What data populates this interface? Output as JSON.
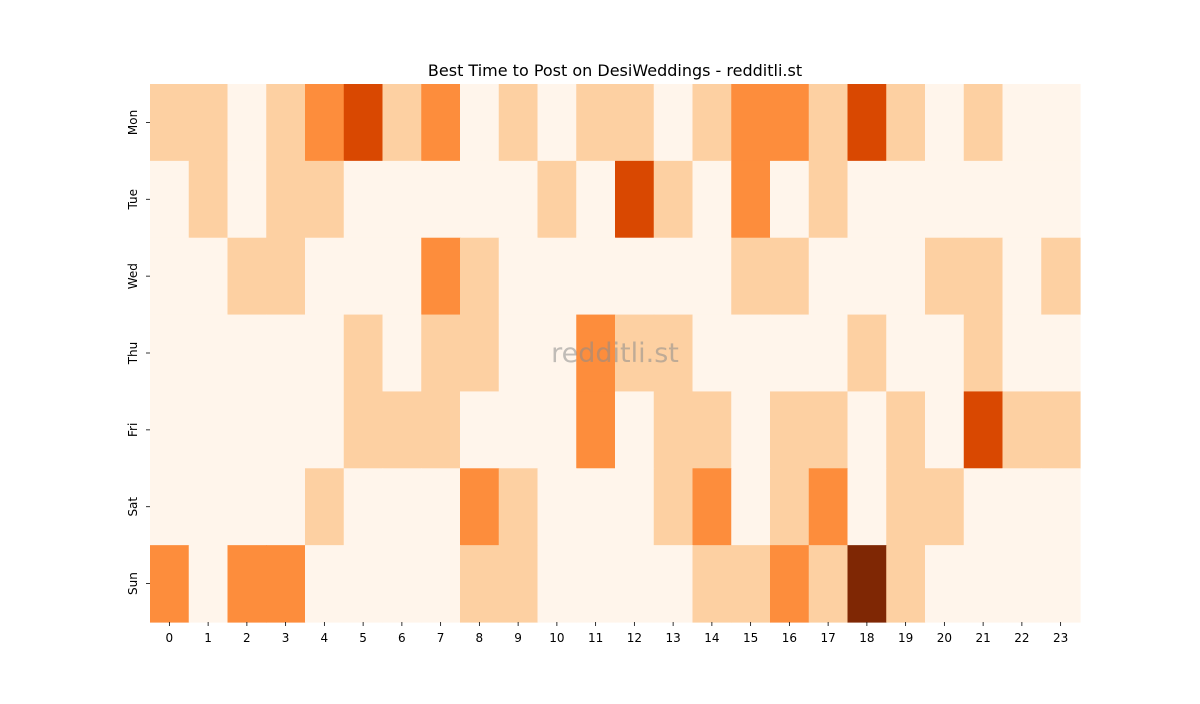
{
  "chart_data": {
    "type": "heatmap",
    "title": "Best Time to Post on DesiWeddings - redditli.st",
    "xlabel": "",
    "ylabel": "",
    "x_categories": [
      "0",
      "1",
      "2",
      "3",
      "4",
      "5",
      "6",
      "7",
      "8",
      "9",
      "10",
      "11",
      "12",
      "13",
      "14",
      "15",
      "16",
      "17",
      "18",
      "19",
      "20",
      "21",
      "22",
      "23"
    ],
    "y_categories": [
      "Mon",
      "Tue",
      "Wed",
      "Thu",
      "Fri",
      "Sat",
      "Sun"
    ],
    "values": [
      [
        1,
        1,
        0,
        1,
        2,
        3,
        1,
        2,
        0,
        1,
        0,
        1,
        1,
        0,
        1,
        2,
        2,
        1,
        3,
        1,
        0,
        1,
        0,
        0
      ],
      [
        0,
        1,
        0,
        1,
        1,
        0,
        0,
        0,
        0,
        0,
        1,
        0,
        3,
        1,
        0,
        2,
        0,
        1,
        0,
        0,
        0,
        0,
        0,
        0
      ],
      [
        0,
        0,
        1,
        1,
        0,
        0,
        0,
        2,
        1,
        0,
        0,
        0,
        0,
        0,
        0,
        1,
        1,
        0,
        0,
        0,
        1,
        1,
        0,
        1
      ],
      [
        0,
        0,
        0,
        0,
        0,
        1,
        0,
        1,
        1,
        0,
        0,
        2,
        1,
        1,
        0,
        0,
        0,
        0,
        1,
        0,
        0,
        1,
        0,
        0
      ],
      [
        0,
        0,
        0,
        0,
        0,
        1,
        1,
        1,
        0,
        0,
        0,
        2,
        0,
        1,
        1,
        0,
        1,
        1,
        0,
        1,
        0,
        3,
        1,
        1
      ],
      [
        0,
        0,
        0,
        0,
        1,
        0,
        0,
        0,
        2,
        1,
        0,
        0,
        0,
        1,
        2,
        0,
        1,
        2,
        0,
        1,
        1,
        0,
        0,
        0
      ],
      [
        2,
        0,
        2,
        2,
        0,
        0,
        0,
        0,
        1,
        1,
        0,
        0,
        0,
        0,
        1,
        1,
        2,
        1,
        4,
        1,
        0,
        0,
        0,
        0
      ]
    ],
    "colorscale": [
      "#fff5eb",
      "#fdd0a2",
      "#fd8d3c",
      "#d94801",
      "#7f2704"
    ],
    "colorbar": false,
    "grid": false,
    "legend": "none"
  },
  "watermark": "redditli.st"
}
